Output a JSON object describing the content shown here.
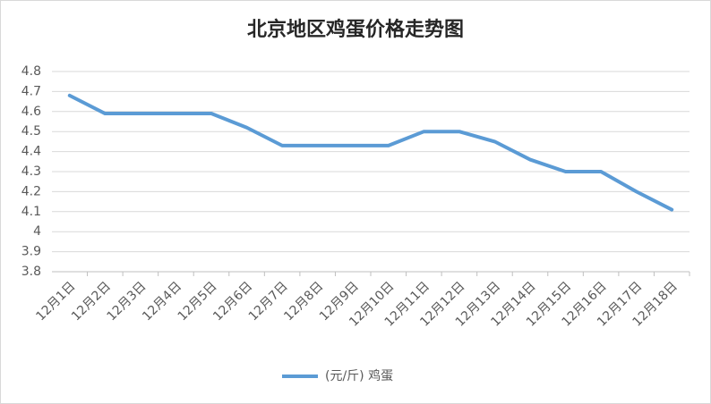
{
  "chart_data": {
    "type": "line",
    "title": "北京地区鸡蛋价格走势图",
    "categories": [
      "12月1日",
      "12月2日",
      "12月3日",
      "12月4日",
      "12月5日",
      "12月6日",
      "12月7日",
      "12月8日",
      "12月9日",
      "12月10日",
      "12月11日",
      "12月12日",
      "12月13日",
      "12月14日",
      "12月15日",
      "12月16日",
      "12月17日",
      "12月18日"
    ],
    "series": [
      {
        "name": "(元/斤) 鸡蛋",
        "color": "#5b9bd5",
        "values": [
          4.68,
          4.59,
          4.59,
          4.59,
          4.59,
          4.52,
          4.43,
          4.43,
          4.43,
          4.43,
          4.5,
          4.5,
          4.45,
          4.36,
          4.3,
          4.3,
          4.2,
          4.11
        ]
      }
    ],
    "ylim": [
      3.8,
      4.8
    ],
    "yticks": [
      3.8,
      3.9,
      4,
      4.1,
      4.2,
      4.3,
      4.4,
      4.5,
      4.6,
      4.7,
      4.8
    ],
    "grid": true,
    "legend": "bottom"
  }
}
